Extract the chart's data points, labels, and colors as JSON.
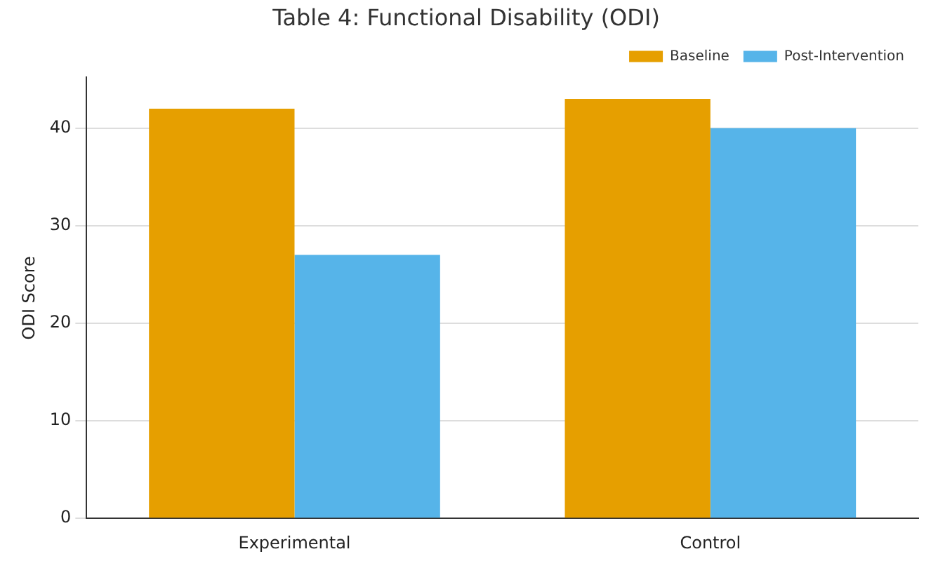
{
  "chart_data": {
    "type": "bar",
    "title": "Table 4: Functional Disability (ODI)",
    "ylabel": "ODI Score",
    "categories": [
      "Experimental",
      "Control"
    ],
    "series": [
      {
        "name": "Baseline",
        "color": "#e69f00",
        "values": [
          42,
          43
        ]
      },
      {
        "name": "Post-Intervention",
        "color": "#56b4e9",
        "values": [
          27,
          40
        ]
      }
    ],
    "ylim": [
      0,
      45.2
    ],
    "yticks": [
      0,
      10,
      20,
      30,
      40
    ],
    "grid": "y",
    "legend": "top right"
  }
}
